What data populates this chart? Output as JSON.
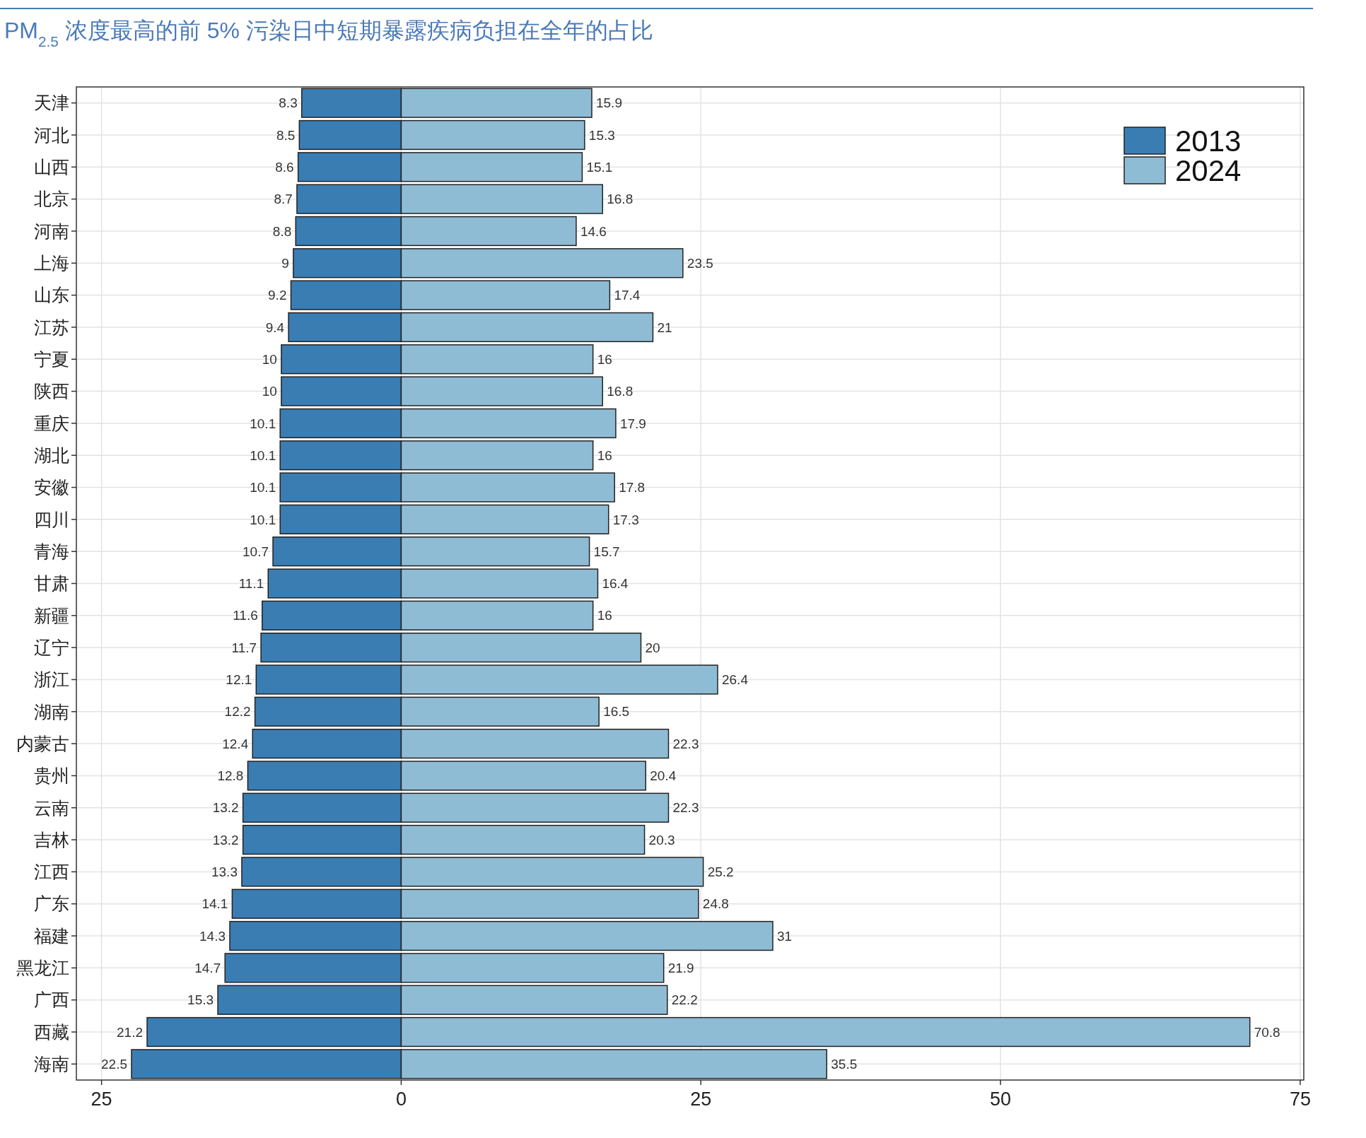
{
  "chart_data": {
    "type": "bar",
    "title": "PM$_{2.5}$ 浓度最高的前 5% 污染日中短期暴露疾病负担在全年的占比",
    "orientation": "horizontal",
    "grid": true,
    "legend": "top right",
    "categories": [
      "天津",
      "河北",
      "山西",
      "北京",
      "河南",
      "上海",
      "山东",
      "江苏",
      "宁夏",
      "陕西",
      "重庆",
      "湖北",
      "安徽",
      "四川",
      "青海",
      "甘肃",
      "新疆",
      "辽宁",
      "浙江",
      "湖南",
      "内蒙古",
      "贵州",
      "云南",
      "吉林",
      "江西",
      "广东",
      "福建",
      "黑龙江",
      "广西",
      "西藏",
      "海南"
    ],
    "xlim": [
      -27.1,
      75.3
    ],
    "xticks": [
      {
        "value": -25,
        "label": "25"
      },
      0,
      25,
      50,
      75
    ],
    "series": [
      {
        "name": "2013",
        "color": "#3a7db3",
        "base": [
          -8.3,
          -8.5,
          -8.6,
          -8.7,
          -8.8,
          -9,
          -9.2,
          -9.4,
          -10,
          -10,
          -10.1,
          -10.1,
          -10.1,
          -10.1,
          -10.7,
          -11.1,
          -11.6,
          -11.7,
          -12.1,
          -12.2,
          -12.4,
          -12.8,
          -13.2,
          -13.2,
          -13.3,
          -14.1,
          -14.3,
          -14.7,
          -15.3,
          -21.2,
          -22.5
        ],
        "values": [
          8.3,
          8.5,
          8.6,
          8.7,
          8.8,
          9,
          9.2,
          9.4,
          10,
          10,
          10.1,
          10.1,
          10.1,
          10.1,
          10.7,
          11.1,
          11.6,
          11.7,
          12.1,
          12.2,
          12.4,
          12.8,
          13.2,
          13.2,
          13.3,
          14.1,
          14.3,
          14.7,
          15.3,
          21.2,
          22.5
        ],
        "value_labels": [
          "8.3",
          "8.5",
          "8.6",
          "8.7",
          "8.8",
          "9",
          "9.2",
          "9.4",
          "10",
          "10",
          "10.1",
          "10.1",
          "10.1",
          "10.1",
          "10.7",
          "11.1",
          "11.6",
          "11.7",
          "12.1",
          "12.2",
          "12.4",
          "12.8",
          "13.2",
          "13.2",
          "13.3",
          "14.1",
          "14.3",
          "14.7",
          "15.3",
          "21.2",
          "22.5"
        ]
      },
      {
        "name": "2024",
        "color": "#8fbcd5",
        "values": [
          15.9,
          15.3,
          15.1,
          16.8,
          14.6,
          23.5,
          17.4,
          21,
          16,
          16.8,
          17.9,
          16,
          17.8,
          17.3,
          15.7,
          16.4,
          16,
          20,
          26.4,
          16.5,
          22.3,
          20.4,
          22.3,
          20.3,
          25.2,
          24.8,
          31,
          21.9,
          22.2,
          70.8,
          35.5
        ],
        "value_labels": [
          "15.9",
          "15.3",
          "15.1",
          "16.8",
          "14.6",
          "23.5",
          "17.4",
          "21",
          "16",
          "16.8",
          "17.9",
          "16",
          "17.8",
          "17.3",
          "15.7",
          "16.4",
          "16",
          "20",
          "26.4",
          "16.5",
          "22.3",
          "20.4",
          "22.3",
          "20.3",
          "25.2",
          "24.8",
          "31",
          "21.9",
          "22.2",
          "70.8",
          "35.5"
        ]
      }
    ]
  }
}
